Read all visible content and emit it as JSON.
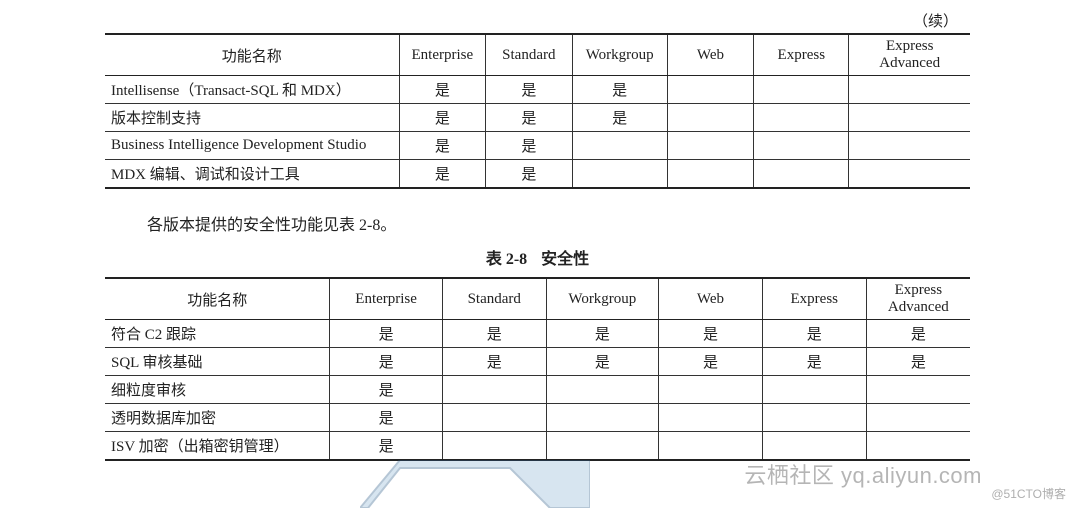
{
  "continued": "（续）",
  "table1": {
    "columns": [
      "功能名称",
      "Enterprise",
      "Standard",
      "Workgroup",
      "Web",
      "Express",
      "Express Advanced"
    ],
    "col_widths_pct": [
      34,
      10,
      10,
      11,
      10,
      11,
      14
    ],
    "rows": [
      [
        "Intellisense（Transact-SQL 和 MDX）",
        "是",
        "是",
        "是",
        "",
        "",
        ""
      ],
      [
        "版本控制支持",
        "是",
        "是",
        "是",
        "",
        "",
        ""
      ],
      [
        "Business Intelligence Development Studio",
        "是",
        "是",
        "",
        "",
        "",
        ""
      ],
      [
        "MDX 编辑、调试和设计工具",
        "是",
        "是",
        "",
        "",
        "",
        ""
      ]
    ]
  },
  "paragraph": "各版本提供的安全性功能见表 2-8。",
  "caption": {
    "num": "表 2-8",
    "title": "安全性"
  },
  "table2": {
    "columns": [
      "功能名称",
      "Enterprise",
      "Standard",
      "Workgroup",
      "Web",
      "Express",
      "Express Advanced"
    ],
    "col_widths_pct": [
      26,
      13,
      12,
      13,
      12,
      12,
      12
    ],
    "rows": [
      [
        "符合 C2 跟踪",
        "是",
        "是",
        "是",
        "是",
        "是",
        "是"
      ],
      [
        "SQL 审核基础",
        "是",
        "是",
        "是",
        "是",
        "是",
        "是"
      ],
      [
        "细粒度审核",
        "是",
        "",
        "",
        "",
        "",
        ""
      ],
      [
        "透明数据库加密",
        "是",
        "",
        "",
        "",
        "",
        ""
      ],
      [
        "ISV 加密（出箱密钥管理）",
        "是",
        "",
        "",
        "",
        "",
        ""
      ]
    ]
  },
  "watermark1": "云栖社区 yq.aliyun.com",
  "watermark2": "@51CTO博客",
  "colors": {
    "text": "#222222",
    "border": "#333333",
    "bg": "#ffffff",
    "watermark": "rgba(120,120,120,0.55)",
    "shape_fill": "#8fb7d6",
    "shape_outline": "#2f5d8a"
  }
}
